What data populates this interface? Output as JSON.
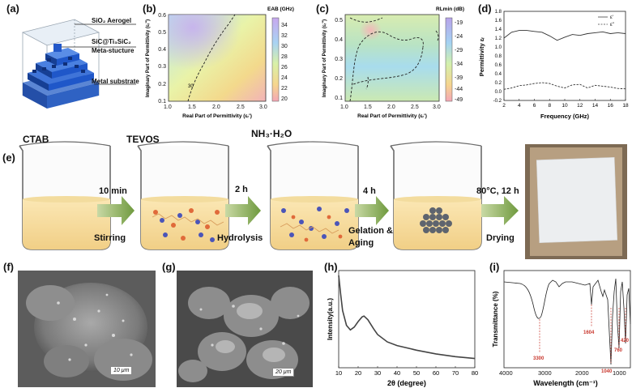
{
  "figure": {
    "labels": {
      "a": "(a)",
      "b": "(b)",
      "c": "(c)",
      "d": "(d)",
      "e": "(e)",
      "f": "(f)",
      "g": "(g)",
      "h": "(h)",
      "i": "(i)"
    }
  },
  "panel_a": {
    "layers": [
      "SiO₂ Aerogel",
      "SiC@Ti₃SiC₂",
      "Meta-stucture",
      "Metal substrate"
    ],
    "colors": {
      "aerogel": "#d9e4ee",
      "meta": "#1f57c9",
      "meta_dark": "#163f94",
      "substrate": "#2d63c6"
    }
  },
  "panel_b": {
    "xlabel": "Real Part of Permittivity (εᵣ')",
    "ylabel": "Imaginary Part of Permittivity (εᵣ\")",
    "colorbar_title": "EAB (GHz)",
    "xticks": [
      "1.0",
      "1.5",
      "2.0",
      "2.5",
      "3.0"
    ],
    "yticks": [
      "0.1",
      "0.2",
      "0.3",
      "0.4",
      "0.5",
      "0.6"
    ],
    "cbar_ticks": [
      "34",
      "32",
      "30",
      "28",
      "26",
      "24",
      "22",
      "20"
    ],
    "contour_label": "30"
  },
  "panel_c": {
    "xlabel": "Real Part of Permittivity (εᵣ')",
    "ylabel": "Imaginary Part of Permittivity (εᵣ\")",
    "colorbar_title": "RLmin (dB)",
    "xticks": [
      "1.0",
      "1.5",
      "2.0",
      "2.5",
      "3.0"
    ],
    "yticks": [
      "0.1",
      "0.2",
      "0.3",
      "0.4",
      "0.5"
    ],
    "cbar_ticks": [
      "-19",
      "-24",
      "-29",
      "-34",
      "-39",
      "-44",
      "-49"
    ]
  },
  "panel_e": {
    "steps": [
      {
        "reagent": "CTAB",
        "arrow_top": "10 min",
        "arrow_bottom": "Stirring"
      },
      {
        "reagent": "TEVOS",
        "arrow_top": "2 h",
        "arrow_bottom": "Hydrolysis"
      },
      {
        "reagent": "NH₃·H₂O",
        "arrow_top": "4 h",
        "arrow_bottom": "Gelation & Aging"
      },
      {
        "reagent": "",
        "arrow_top": "80°C, 12 h",
        "arrow_bottom": "Drying"
      }
    ]
  },
  "panel_f": {
    "scalebar": "10 μm"
  },
  "panel_g": {
    "scalebar": "20 μm"
  },
  "panel_i": {
    "xlabel": "Wavelength (cm⁻¹)",
    "ylabel": "Transmittance (%)",
    "peak_labels": [
      "3300",
      "1604",
      "1040",
      "760",
      "420"
    ]
  },
  "chart_data": [
    {
      "type": "line",
      "panel": "d",
      "xlabel": "Frequency (GHz)",
      "ylabel": "Permittivity εᵣ",
      "xlim": [
        2,
        18
      ],
      "ylim": [
        -0.2,
        1.8
      ],
      "xticks": [
        "2",
        "4",
        "6",
        "8",
        "10",
        "12",
        "14",
        "16",
        "18"
      ],
      "yticks": [
        "-0.2",
        "0.0",
        "0.2",
        "0.4",
        "0.6",
        "0.8",
        "1.0",
        "1.2",
        "1.4",
        "1.6",
        "1.8"
      ],
      "legend": "top-right",
      "series": [
        {
          "name": "ε'",
          "style": "solid",
          "x": [
            2,
            3,
            4,
            5,
            6,
            7,
            8,
            9,
            10,
            11,
            12,
            13,
            14,
            15,
            16,
            17,
            18
          ],
          "y": [
            1.2,
            1.33,
            1.37,
            1.37,
            1.35,
            1.33,
            1.25,
            1.15,
            1.22,
            1.28,
            1.26,
            1.3,
            1.32,
            1.34,
            1.3,
            1.32,
            1.3
          ]
        },
        {
          "name": "ε\"",
          "style": "dashed",
          "x": [
            2,
            3,
            4,
            5,
            6,
            7,
            8,
            9,
            10,
            11,
            12,
            13,
            14,
            15,
            16,
            17,
            18
          ],
          "y": [
            0.05,
            0.08,
            0.13,
            0.15,
            0.18,
            0.2,
            0.18,
            0.12,
            0.08,
            0.15,
            0.16,
            0.08,
            0.14,
            0.12,
            0.1,
            0.07,
            0.06
          ]
        }
      ]
    },
    {
      "type": "line",
      "panel": "h",
      "xlabel": "2θ (degree)",
      "ylabel": "Intensity(a.u.)",
      "xlim": [
        10,
        80
      ],
      "xticks": [
        "10",
        "20",
        "30",
        "40",
        "50",
        "60",
        "70",
        "80"
      ],
      "series": [
        {
          "x": [
            10,
            11,
            12,
            14,
            16,
            18,
            20,
            22,
            23,
            25,
            28,
            30,
            35,
            40,
            50,
            60,
            70,
            80
          ],
          "y": [
            1.0,
            0.8,
            0.62,
            0.46,
            0.41,
            0.44,
            0.5,
            0.55,
            0.56,
            0.52,
            0.42,
            0.36,
            0.28,
            0.24,
            0.19,
            0.15,
            0.12,
            0.1
          ]
        }
      ]
    }
  ]
}
